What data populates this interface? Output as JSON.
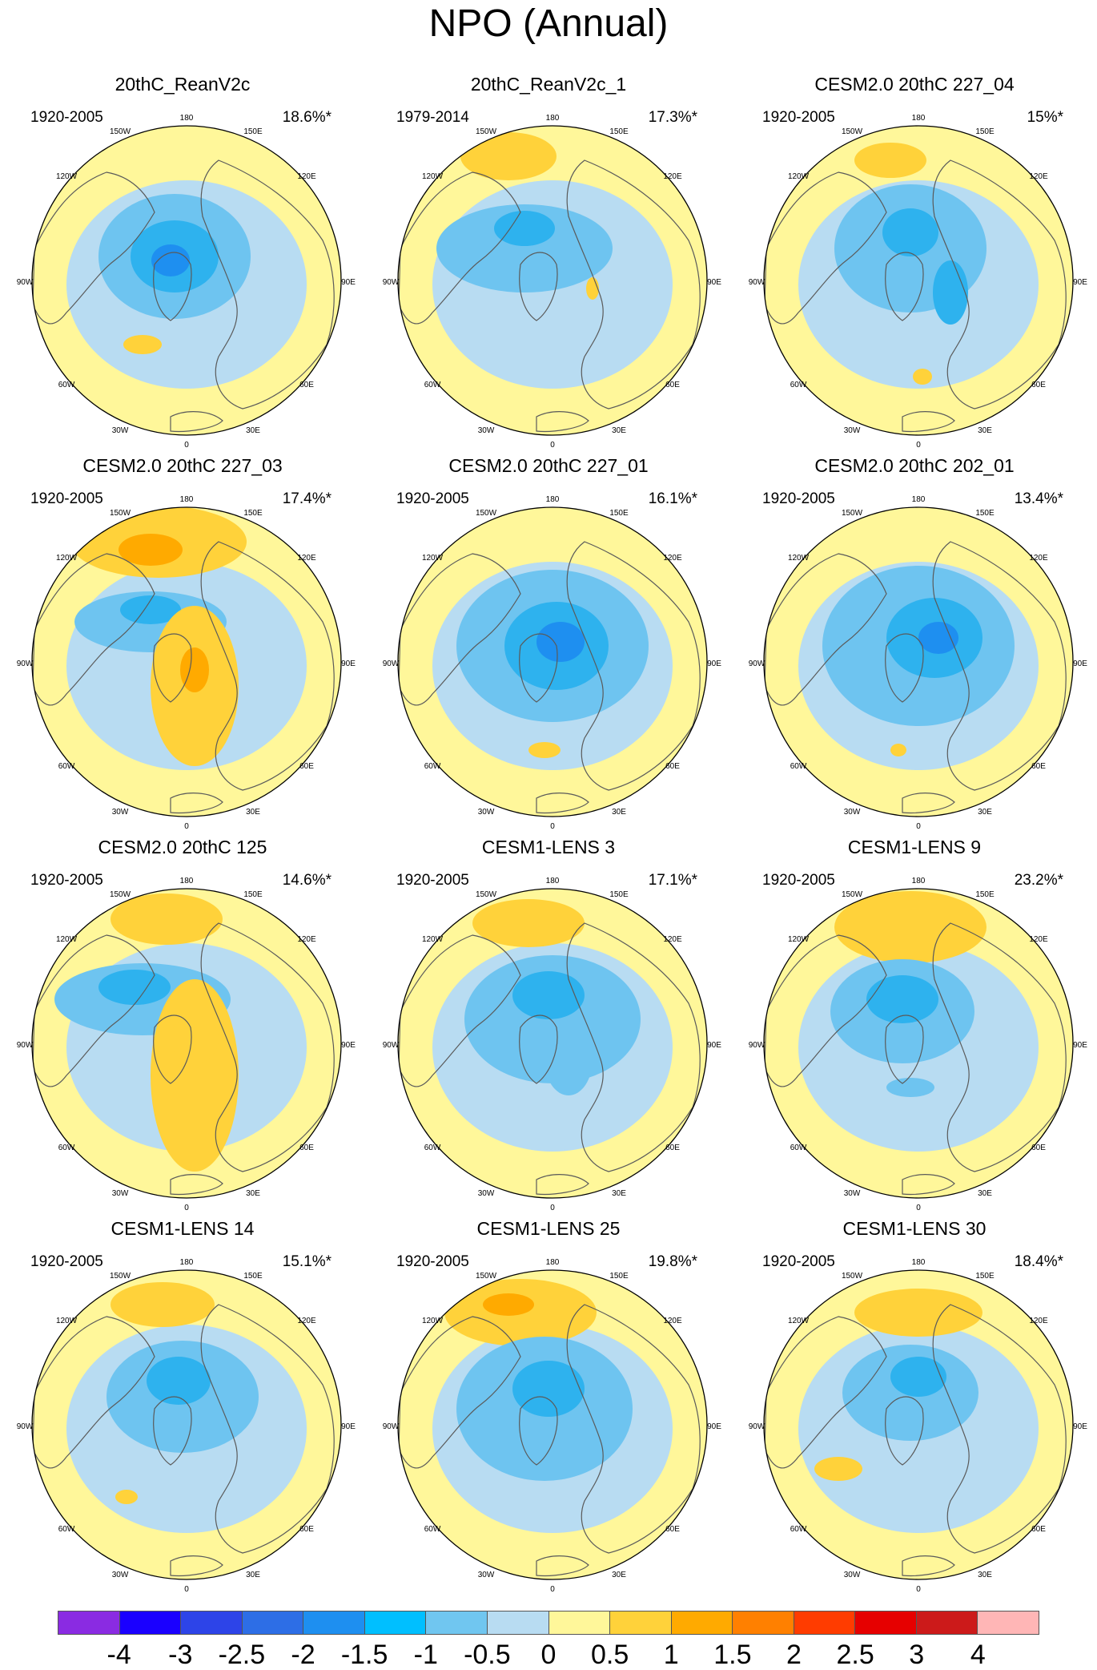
{
  "title": "NPO (Annual)",
  "colors": {
    "ocean_blue_light": "#b8dcf2",
    "blue_mid": "#6ec4f0",
    "blue_strong": "#2eb2ee",
    "blue_deep": "#1e8ff0",
    "yellow": "#fff79a",
    "orange_light": "#ffd23a",
    "orange": "#ffaa00",
    "coast": "#5a5a5a"
  },
  "lon_labels": {
    "top": "180",
    "top_left": "150W",
    "top_right": "150E",
    "upper_left": "120W",
    "upper_right": "120E",
    "left": "90W",
    "right": "90E",
    "lower_left": "60W",
    "lower_right": "60E",
    "bottom_left": "30W",
    "bottom_right": "30E",
    "bottom": "0"
  },
  "panels": [
    {
      "title": "20thC_ReanV2c",
      "period": "1920-2005",
      "variance": "18.6%*"
    },
    {
      "title": "20thC_ReanV2c_1",
      "period": "1979-2014",
      "variance": "17.3%*"
    },
    {
      "title": "CESM2.0 20thC 227_04",
      "period": "1920-2005",
      "variance": "15%*"
    },
    {
      "title": "CESM2.0 20thC 227_03",
      "period": "1920-2005",
      "variance": "17.4%*"
    },
    {
      "title": "CESM2.0 20thC 227_01",
      "period": "1920-2005",
      "variance": "16.1%*"
    },
    {
      "title": "CESM2.0 20thC 202_01",
      "period": "1920-2005",
      "variance": "13.4%*"
    },
    {
      "title": "CESM2.0 20thC 125",
      "period": "1920-2005",
      "variance": "14.6%*"
    },
    {
      "title": "CESM1-LENS 3",
      "period": "1920-2005",
      "variance": "17.1%*"
    },
    {
      "title": "CESM1-LENS 9",
      "period": "1920-2005",
      "variance": "23.2%*"
    },
    {
      "title": "CESM1-LENS 14",
      "period": "1920-2005",
      "variance": "15.1%*"
    },
    {
      "title": "CESM1-LENS 25",
      "period": "1920-2005",
      "variance": "19.8%*"
    },
    {
      "title": "CESM1-LENS 30",
      "period": "1920-2005",
      "variance": "18.4%*"
    }
  ],
  "colorbar": {
    "colors": [
      "#8a2be2",
      "#1a00ff",
      "#2d44e8",
      "#2d6ee6",
      "#1e8ff0",
      "#00bfff",
      "#70c6f0",
      "#b8dcf2",
      "#fff79a",
      "#ffd23a",
      "#ffaa00",
      "#ff8000",
      "#ff3c00",
      "#e60000",
      "#cc1a1a",
      "#ffb6b6"
    ],
    "labels": [
      "-4",
      "-3",
      "-2.5",
      "-2",
      "-1.5",
      "-1",
      "-0.5",
      "0",
      "0.5",
      "1",
      "1.5",
      "2",
      "2.5",
      "3",
      "4"
    ]
  }
}
